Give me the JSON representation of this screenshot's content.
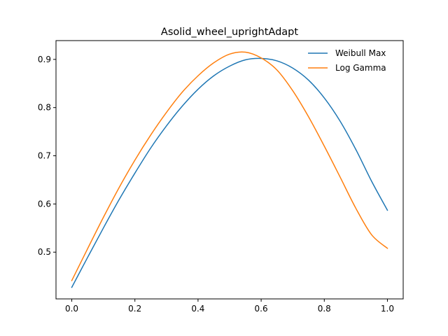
{
  "chart_data": {
    "type": "line",
    "title": "Asolid_wheel_uprightAdapt",
    "xlabel": "",
    "ylabel": "",
    "xlim": [
      -0.05,
      1.05
    ],
    "ylim": [
      0.403,
      0.939
    ],
    "xticks": [
      0.0,
      0.2,
      0.4,
      0.6,
      0.8,
      1.0
    ],
    "xtick_labels": [
      "0.0",
      "0.2",
      "0.4",
      "0.6",
      "0.8",
      "1.0"
    ],
    "yticks": [
      0.5,
      0.6,
      0.7,
      0.8,
      0.9
    ],
    "ytick_labels": [
      "0.5",
      "0.6",
      "0.7",
      "0.8",
      "0.9"
    ],
    "grid": false,
    "legend_position": "upper right",
    "series": [
      {
        "name": "Weibull Max",
        "color": "#1f77b4",
        "x": [
          0.0,
          0.05,
          0.1,
          0.15,
          0.2,
          0.25,
          0.3,
          0.35,
          0.4,
          0.45,
          0.5,
          0.55,
          0.6,
          0.65,
          0.7,
          0.75,
          0.8,
          0.85,
          0.9,
          0.95,
          1.0
        ],
        "y": [
          0.427,
          0.489,
          0.55,
          0.609,
          0.664,
          0.716,
          0.762,
          0.803,
          0.838,
          0.866,
          0.886,
          0.899,
          0.902,
          0.897,
          0.882,
          0.857,
          0.82,
          0.772,
          0.713,
          0.647,
          0.587
        ]
      },
      {
        "name": "Log Gamma",
        "color": "#ff7f0e",
        "x": [
          0.0,
          0.05,
          0.1,
          0.15,
          0.2,
          0.25,
          0.3,
          0.35,
          0.4,
          0.45,
          0.5,
          0.55,
          0.6,
          0.65,
          0.7,
          0.75,
          0.8,
          0.85,
          0.9,
          0.95,
          1.0
        ],
        "y": [
          0.441,
          0.507,
          0.572,
          0.634,
          0.691,
          0.743,
          0.79,
          0.832,
          0.866,
          0.893,
          0.911,
          0.915,
          0.903,
          0.878,
          0.835,
          0.781,
          0.72,
          0.656,
          0.591,
          0.536,
          0.508
        ]
      }
    ]
  }
}
